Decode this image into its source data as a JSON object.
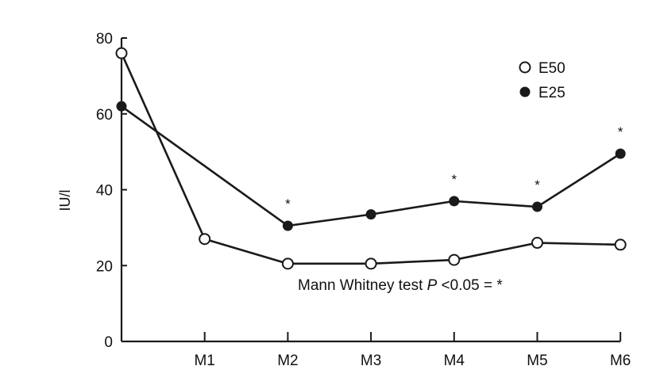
{
  "chart_data": {
    "type": "line",
    "ylabel": "IU/l",
    "xlabel": "",
    "ylim": [
      0,
      80
    ],
    "yticks": [
      "0",
      "20",
      "40",
      "60",
      "80"
    ],
    "categories": [
      "",
      "M1",
      "M2",
      "M3",
      "M4",
      "M5",
      "M6"
    ],
    "series": [
      {
        "name": "E50",
        "marker": "open-circle",
        "values": [
          76,
          27,
          20.5,
          20.5,
          21.5,
          26,
          25.5
        ]
      },
      {
        "name": "E25",
        "marker": "filled-circle",
        "values": [
          62,
          null,
          30.5,
          33.5,
          37,
          35.5,
          49.5
        ]
      }
    ],
    "significance": {
      "marker": "*",
      "categories": [
        "M2",
        "M4",
        "M5",
        "M6"
      ]
    },
    "annotation": {
      "prefix": "Mann Whitney test ",
      "italic": "P",
      "suffix": " <0.05 = *"
    },
    "legend_position": "top-right"
  },
  "colors": {
    "ink": "#1a1a1a",
    "open_fill": "#ffffff"
  }
}
